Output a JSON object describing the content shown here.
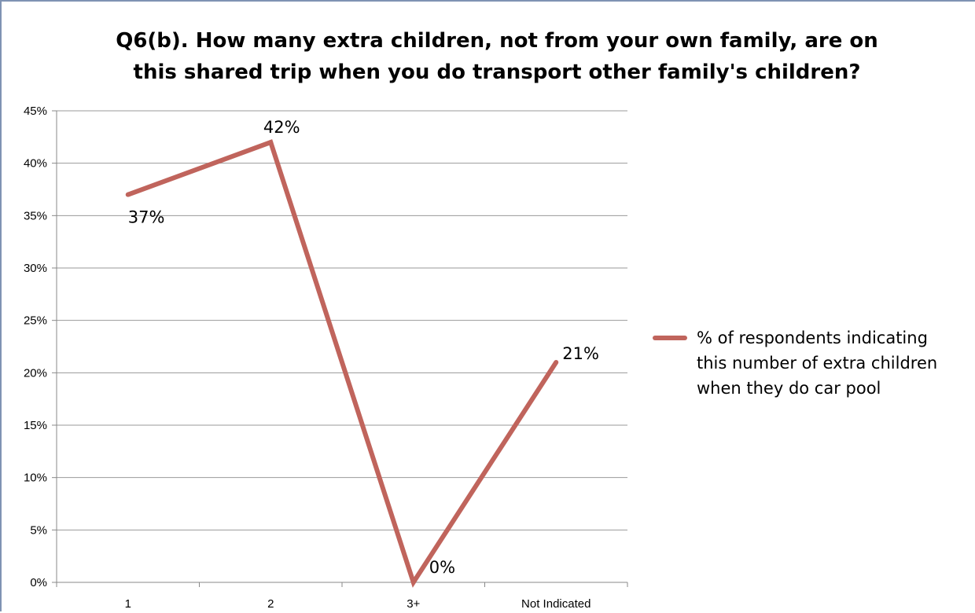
{
  "colors": {
    "series": "#c0645c",
    "grid": "#999999",
    "axis": "#888888"
  },
  "chart_data": {
    "type": "line",
    "title_lines": [
      "Q6(b). How many extra children, not from your own family, are on",
      "this shared trip when you do transport other family's children?"
    ],
    "categories": [
      "1",
      "2",
      "3+",
      "Not Indicated"
    ],
    "series": [
      {
        "name_lines": [
          "% of respondents indicating",
          "this number of extra children",
          "when they do car pool"
        ],
        "values": [
          37,
          42,
          0,
          21
        ],
        "data_labels": [
          "37%",
          "42%",
          "0%",
          "21%"
        ]
      }
    ],
    "ylim": [
      0,
      45
    ],
    "y_ticks": [
      0,
      5,
      10,
      15,
      20,
      25,
      30,
      35,
      40,
      45
    ],
    "y_tick_labels": [
      "0%",
      "5%",
      "10%",
      "15%",
      "20%",
      "25%",
      "30%",
      "35%",
      "40%",
      "45%"
    ],
    "grid": true,
    "legend_position": "right"
  }
}
